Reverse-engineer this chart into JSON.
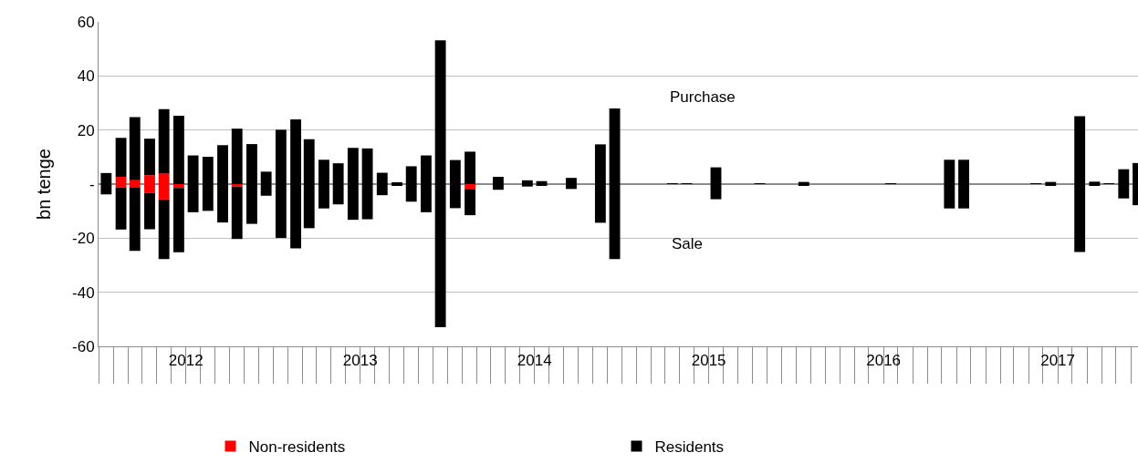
{
  "chart_data": {
    "type": "bar",
    "stacked": true,
    "ylabel": "bn tenge",
    "x": [
      "2012-01",
      "2012-02",
      "2012-03",
      "2012-04",
      "2012-05",
      "2012-06",
      "2012-07",
      "2012-08",
      "2012-09",
      "2012-10",
      "2012-11",
      "2012-12",
      "2013-01",
      "2013-02",
      "2013-03",
      "2013-04",
      "2013-05",
      "2013-06",
      "2013-07",
      "2013-08",
      "2013-09",
      "2013-10",
      "2013-11",
      "2013-12",
      "2014-01",
      "2014-02",
      "2014-03",
      "2014-04",
      "2014-05",
      "2014-06",
      "2014-07",
      "2014-08",
      "2014-09",
      "2014-10",
      "2014-11",
      "2014-12",
      "2015-01",
      "2015-02",
      "2015-03",
      "2015-04",
      "2015-05",
      "2015-06",
      "2015-07",
      "2015-08",
      "2015-09",
      "2015-10",
      "2015-11",
      "2015-12",
      "2016-01",
      "2016-02",
      "2016-03",
      "2016-04",
      "2016-05",
      "2016-06",
      "2016-07",
      "2016-08",
      "2016-09",
      "2016-10",
      "2016-11",
      "2016-12",
      "2017-01",
      "2017-02",
      "2017-03",
      "2017-04",
      "2017-05",
      "2017-06",
      "2017-07",
      "2017-08",
      "2017-09",
      "2017-10",
      "2017-11",
      "2017-12"
    ],
    "series": [
      {
        "name": "Non-residents",
        "color": "#ff0000",
        "values": [
          null,
          2.7,
          1.4,
          3.3,
          4.0,
          null,
          null,
          null,
          null,
          null,
          null,
          null,
          null,
          null,
          null,
          null,
          null,
          null,
          null,
          null,
          null,
          null,
          null,
          null,
          null,
          null,
          null,
          null,
          null,
          null,
          null,
          null,
          null,
          null,
          null,
          null,
          null,
          null,
          null,
          null,
          null,
          null,
          null,
          null,
          null,
          null,
          null,
          null,
          null,
          null,
          null,
          null,
          null,
          null,
          null,
          null,
          null,
          null,
          null,
          null,
          null,
          null,
          null,
          null,
          null,
          null,
          null,
          null,
          null,
          null,
          null,
          null
        ]
      },
      {
        "name": "Residents",
        "color": "#000000",
        "values": [
          4.1,
          14.4,
          23.4,
          13.5,
          23.7,
          25.3,
          10.6,
          10.1,
          14.4,
          20.5,
          14.8,
          4.6,
          20.1,
          23.9,
          16.6,
          9.0,
          7.7,
          13.4,
          13.2,
          4.2,
          0.5,
          6.6,
          10.6,
          53.2,
          8.9,
          12.0,
          null,
          2.7,
          null,
          1.4,
          1.1,
          null,
          2.3,
          null,
          14.7,
          28.0,
          null,
          null,
          null,
          0.3,
          0.3,
          null,
          6.2,
          null,
          null,
          0.1,
          null,
          null,
          0.8,
          null,
          null,
          null,
          null,
          null,
          0.2,
          null,
          null,
          null,
          9.0,
          9.0,
          null,
          null,
          null,
          null,
          0.1,
          0.8,
          null,
          25.1,
          0.9,
          0.2,
          5.5,
          7.8
        ]
      },
      {
        "color": "#ff0000",
        "values": [
          null,
          -1.3,
          -1.3,
          -3.3,
          -5.7,
          -1.4,
          null,
          null,
          null,
          -0.9,
          null,
          null,
          null,
          null,
          null,
          null,
          null,
          null,
          null,
          null,
          null,
          null,
          null,
          null,
          null,
          -1.8,
          null,
          null,
          null,
          null,
          null,
          null,
          null,
          null,
          null,
          null,
          null,
          null,
          null,
          null,
          null,
          null,
          null,
          null,
          null,
          null,
          null,
          null,
          null,
          null,
          null,
          null,
          null,
          null,
          null,
          null,
          null,
          null,
          null,
          null,
          null,
          null,
          null,
          null,
          null,
          null,
          null,
          null,
          null,
          null,
          null,
          null
        ]
      },
      {
        "color": "#000000",
        "values": [
          -3.8,
          -15.5,
          -23.4,
          -13.4,
          -22.0,
          -23.8,
          -10.4,
          -9.9,
          -14.2,
          -19.4,
          -14.7,
          -4.3,
          -19.9,
          -23.8,
          -16.3,
          -9.0,
          -7.5,
          -13.2,
          -13.0,
          -4.1,
          -0.5,
          -6.5,
          -10.4,
          -52.9,
          -8.9,
          -9.7,
          null,
          -2.1,
          null,
          -0.9,
          -0.6,
          null,
          -1.8,
          null,
          -14.3,
          -27.7,
          null,
          null,
          null,
          null,
          null,
          null,
          -5.6,
          null,
          null,
          null,
          null,
          null,
          -0.5,
          null,
          null,
          null,
          null,
          null,
          null,
          null,
          null,
          null,
          -9.0,
          -9.0,
          null,
          null,
          null,
          null,
          null,
          -0.5,
          null,
          -25.1,
          -0.6,
          null,
          -5.3,
          -7.8
        ]
      }
    ],
    "ylim": [
      -60,
      60
    ],
    "yticks": [
      -60,
      -40,
      -20,
      {
        "value": 0,
        "label": "-"
      },
      20,
      40,
      60
    ],
    "xlim": [
      "2011-12-16",
      "2017-12-01"
    ],
    "xticks": [
      {
        "value": "2012-06-16",
        "label": "2012"
      },
      {
        "value": "2013-06-16",
        "label": "2013"
      },
      {
        "value": "2014-06-16",
        "label": "2014"
      },
      {
        "value": "2015-06-16",
        "label": "2015"
      },
      {
        "value": "2016-06-16",
        "label": "2016"
      },
      {
        "value": "2017-06-16",
        "label": "2017"
      }
    ],
    "annotations": [
      "Purchase",
      "Sale"
    ],
    "grid": "y",
    "legend": "bottom"
  }
}
